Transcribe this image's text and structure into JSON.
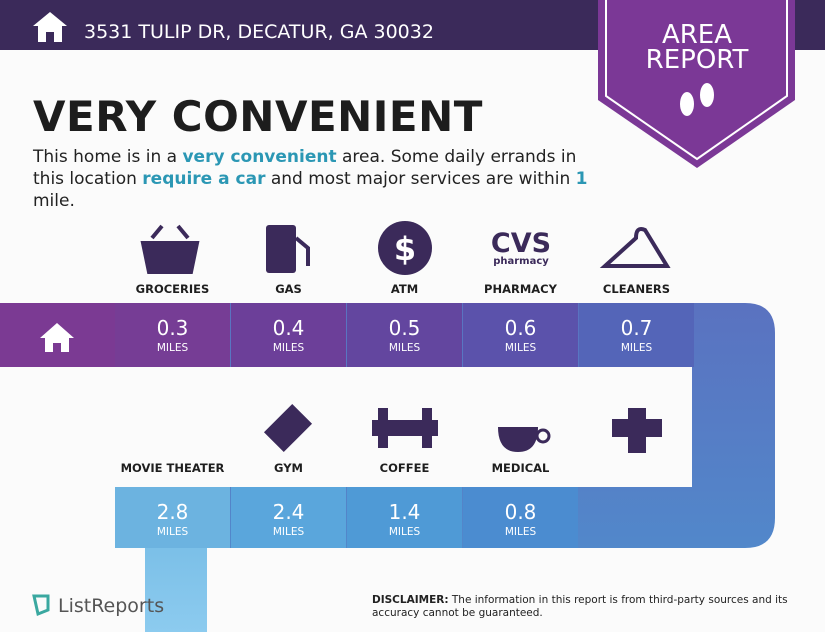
{
  "header": {
    "address": "3531 TULIP DR, DECATUR, GA 30032"
  },
  "badge": {
    "line1": "AREA",
    "line2": "REPORT"
  },
  "headline": "VERY CONVENIENT",
  "summary": [
    "This home is in a ",
    "very convenient",
    " area. Some daily errands in this location ",
    "require a car",
    " and most major services are within ",
    "1",
    " mile."
  ],
  "amenities": [
    {
      "label": "GROCERIES",
      "distance": 0.3,
      "unit": "MILES"
    },
    {
      "label": "GAS",
      "distance": 0.4,
      "unit": "MILES"
    },
    {
      "label": "ATM",
      "distance": 0.5,
      "unit": "MILES"
    },
    {
      "label": "PHARMACY",
      "distance": 0.6,
      "unit": "MILES"
    },
    {
      "label": "CLEANERS",
      "distance": 0.7,
      "unit": "MILES"
    },
    {
      "label": "MOVIE THEATER",
      "distance": 2.8,
      "unit": "MILES"
    },
    {
      "label": "GYM",
      "distance": 2.4,
      "unit": "MILES"
    },
    {
      "label": "COFFEE",
      "distance": 1.4,
      "unit": "MILES"
    },
    {
      "label": "MEDICAL",
      "distance": 0.8,
      "unit": "MILES"
    }
  ],
  "icons": {
    "atm": "$",
    "pharmacy_top": "CVS",
    "pharmacy_bottom": "pharmacy"
  },
  "footer": {
    "brand": "ListReports",
    "disclaimer_label": "DISCLAIMER:",
    "disclaimer": " The information in this report is from third-party sources and its accuracy cannot be guaranteed."
  }
}
